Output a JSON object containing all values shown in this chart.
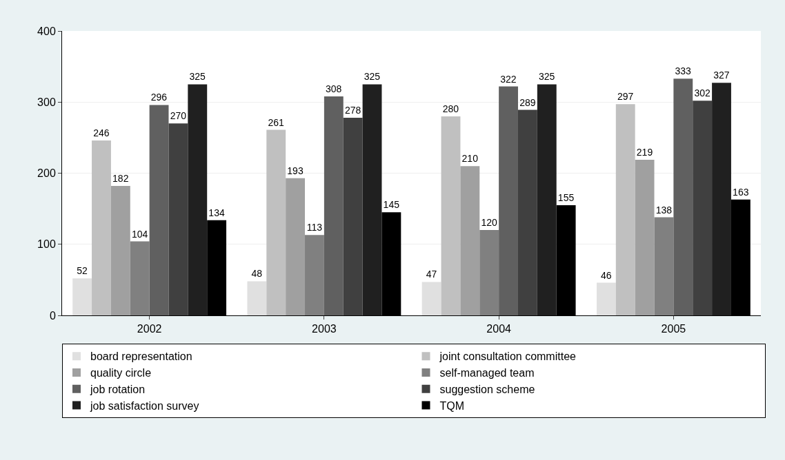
{
  "chart_data": {
    "type": "bar",
    "categories": [
      "2002",
      "2003",
      "2004",
      "2005"
    ],
    "series": [
      {
        "name": "board representation",
        "color": "#e0e0e0",
        "values": [
          52,
          48,
          47,
          46
        ]
      },
      {
        "name": "joint consultation committee",
        "color": "#c0c0c0",
        "values": [
          246,
          261,
          280,
          297
        ]
      },
      {
        "name": "quality circle",
        "color": "#a0a0a0",
        "values": [
          182,
          193,
          210,
          219
        ]
      },
      {
        "name": "self-managed team",
        "color": "#808080",
        "values": [
          104,
          113,
          120,
          138
        ]
      },
      {
        "name": "job rotation",
        "color": "#606060",
        "values": [
          296,
          308,
          322,
          333
        ]
      },
      {
        "name": "suggestion scheme",
        "color": "#404040",
        "values": [
          270,
          278,
          289,
          302
        ]
      },
      {
        "name": "job satisfaction survey",
        "color": "#202020",
        "values": [
          325,
          325,
          325,
          327
        ]
      },
      {
        "name": "TQM",
        "color": "#000000",
        "values": [
          134,
          145,
          155,
          163
        ]
      }
    ],
    "ylim": [
      0,
      400
    ],
    "yticks": [
      0,
      100,
      200,
      300,
      400
    ],
    "grid": "y",
    "legend": "bottom",
    "data_labels": true
  }
}
